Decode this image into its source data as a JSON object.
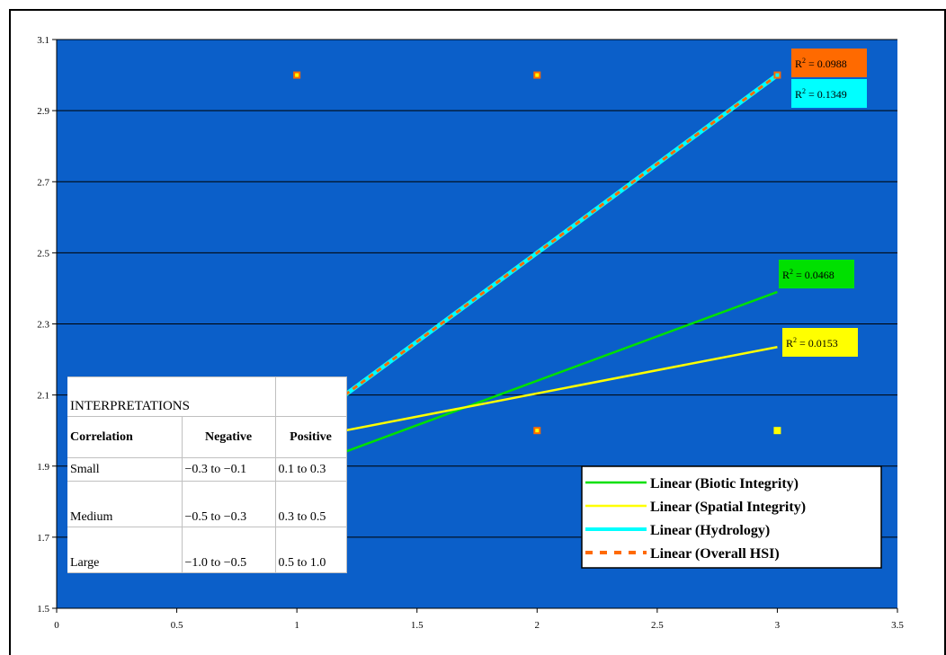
{
  "chart_data": {
    "type": "scatter",
    "title": "",
    "xlabel": "",
    "ylabel": "",
    "xlim": [
      0,
      3.5
    ],
    "ylim": [
      1.5,
      3.1
    ],
    "x_ticks": [
      "0",
      "0.5",
      "1",
      "1.5",
      "2",
      "2.5",
      "3",
      "3.5"
    ],
    "y_ticks": [
      "1.5",
      "1.7",
      "1.9",
      "2.1",
      "2.3",
      "2.5",
      "2.7",
      "2.9",
      "3.1"
    ],
    "grid": "horizontal",
    "plot_background": "#0b5fc9",
    "points": [
      {
        "x": 1,
        "y": 3,
        "colors": [
          "#ff6a00",
          "#ffff00"
        ]
      },
      {
        "x": 2,
        "y": 3,
        "colors": [
          "#ff6a00",
          "#ffff00"
        ]
      },
      {
        "x": 3,
        "y": 3,
        "colors": [
          "#ff6a00",
          "#00ffff"
        ]
      },
      {
        "x": 2,
        "y": 2,
        "colors": [
          "#ff6a00",
          "#ffff00"
        ]
      },
      {
        "x": 3,
        "y": 2,
        "colors": [
          "#ffff00"
        ]
      }
    ],
    "trendlines": [
      {
        "name": "Linear (Biotic Integrity)",
        "color": "#00e000",
        "style": "solid",
        "x_range": [
          1.2,
          3
        ],
        "y_range": [
          1.94,
          2.39
        ],
        "r2": "R² = 0.0468",
        "r2_bg": "#00e000"
      },
      {
        "name": "Linear (Spatial Integrity)",
        "color": "#ffff00",
        "style": "solid",
        "x_range": [
          1.2,
          3
        ],
        "y_range": [
          2.0,
          2.235
        ],
        "r2": "R² = 0.0153",
        "r2_bg": "#ffff00"
      },
      {
        "name": "Linear (Hydrology)",
        "color": "#00ffff",
        "style": "solid",
        "x_range": [
          1.2,
          3
        ],
        "y_range": [
          2.1,
          3.0
        ],
        "r2": "R² = 0.1349",
        "r2_bg": "#00ffff"
      },
      {
        "name": "Linear (Overall HSI)",
        "color": "#ff6a00",
        "style": "dashed",
        "x_range": [
          1.2,
          3
        ],
        "y_range": [
          2.1,
          3.0
        ],
        "r2": "R² = 0.0988",
        "r2_bg": "#ff6a00"
      }
    ],
    "legend": {
      "placement": "bottom-right"
    }
  },
  "interpretations": {
    "title": "INTERPRETATIONS",
    "headers": [
      "Correlation",
      "Negative",
      "Positive"
    ],
    "rows": [
      {
        "label": "Small",
        "negative": "−0.3 to −0.1",
        "positive": "0.1 to 0.3"
      },
      {
        "label": "Medium",
        "negative": "−0.5 to −0.3",
        "positive": "0.3 to 0.5"
      },
      {
        "label": "Large",
        "negative": "−1.0 to −0.5",
        "positive": "0.5 to 1.0"
      }
    ]
  }
}
